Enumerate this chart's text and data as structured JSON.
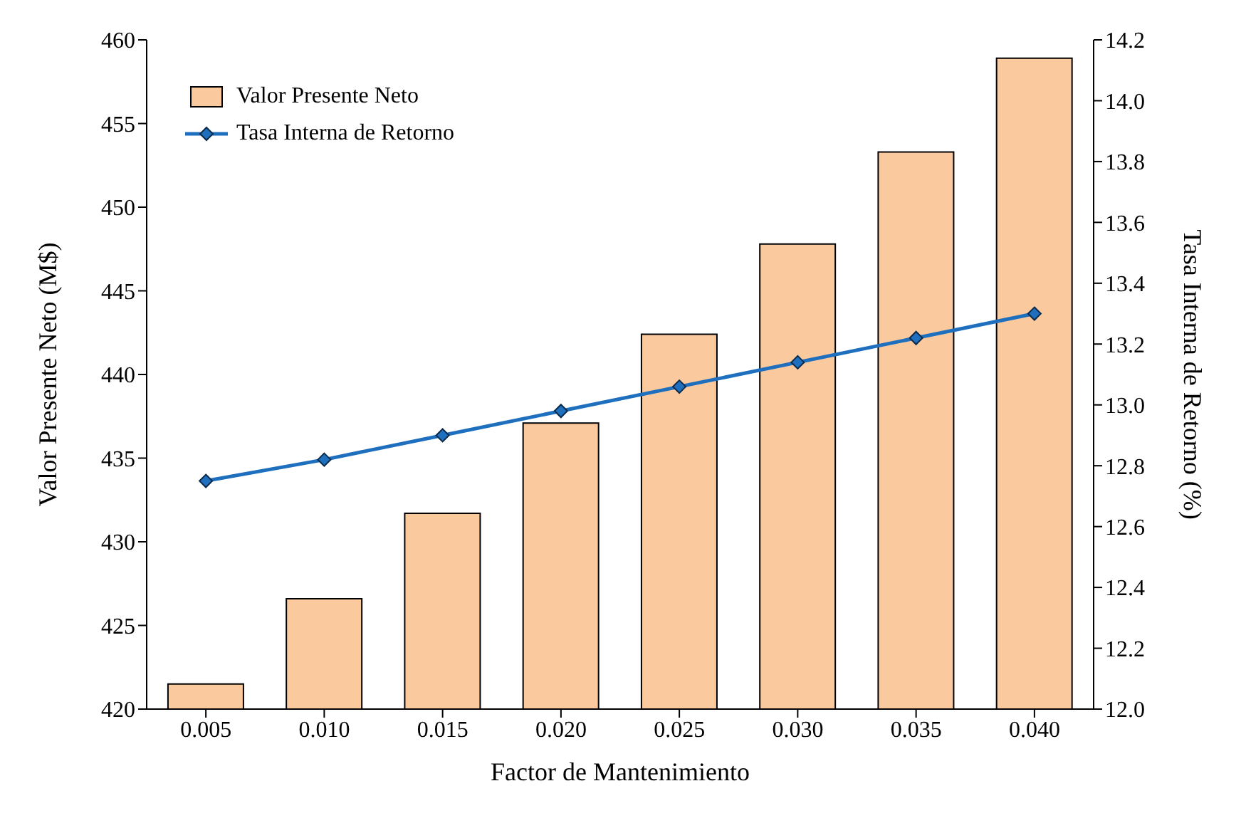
{
  "chart_data": {
    "type": "bar",
    "xlabel": "Factor de Mantenimiento",
    "ylabel": "Valor Presente Neto (M$)",
    "y2label": "Tasa Interna de Retorno (%)",
    "categories": [
      "0.005",
      "0.010",
      "0.015",
      "0.020",
      "0.025",
      "0.030",
      "0.035",
      "0.040"
    ],
    "series": [
      {
        "name": "Valor Presente Neto",
        "color": "#fbc99e",
        "values": [
          421.5,
          426.6,
          431.7,
          437.1,
          442.4,
          447.8,
          453.3,
          458.9
        ]
      },
      {
        "name": "Tasa Interna de Retorno",
        "type": "line",
        "axis": "y2",
        "color": "#1f6fbf",
        "marker": "diamond",
        "values": [
          12.75,
          12.82,
          12.9,
          12.98,
          13.06,
          13.14,
          13.22,
          13.3
        ]
      }
    ],
    "ylim": [
      420,
      460
    ],
    "yticks": [
      420,
      425,
      430,
      435,
      440,
      445,
      450,
      455,
      460
    ],
    "y2lim": [
      12.0,
      14.2
    ],
    "y2ticks": [
      {
        "value": 12,
        "label": "12.0"
      },
      12.2,
      12.4,
      12.6,
      12.8,
      {
        "value": 13,
        "label": "13.0"
      },
      13.2,
      13.4,
      13.6,
      13.8,
      {
        "value": 14,
        "label": "14.0"
      },
      14.2
    ],
    "grid": false,
    "legend": "top left"
  }
}
